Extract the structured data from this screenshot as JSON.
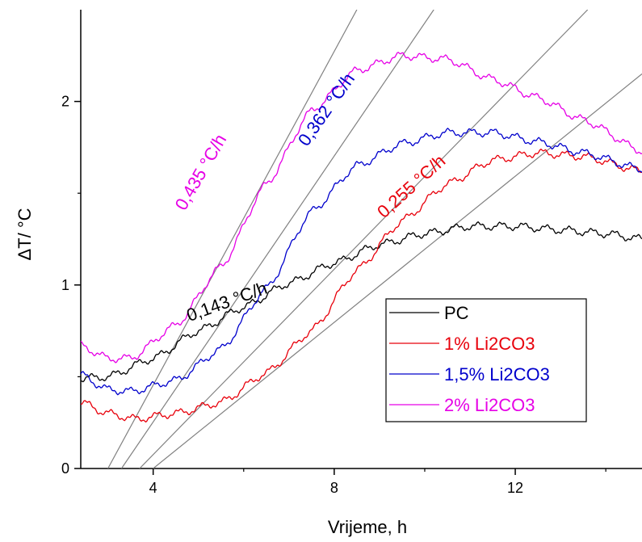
{
  "chart_data": {
    "type": "line",
    "title": "",
    "xlabel": "Vrijeme, h",
    "ylabel": "ΔT/ °C",
    "xlim": [
      2.4,
      14.8
    ],
    "ylim": [
      0,
      2.5
    ],
    "xticks": [
      4,
      8,
      12
    ],
    "yticks": [
      0,
      1,
      2
    ],
    "xtick_labels": [
      "4",
      "8",
      "12"
    ],
    "ytick_labels": [
      "0",
      "1",
      "2"
    ],
    "grid": false,
    "legend_position": "bottom-right",
    "series": [
      {
        "name": "PC",
        "color": "#000000",
        "points": [
          [
            2.4,
            0.49
          ],
          [
            3.0,
            0.5
          ],
          [
            4.0,
            0.6
          ],
          [
            5.0,
            0.75
          ],
          [
            6.0,
            0.88
          ],
          [
            7.0,
            1.01
          ],
          [
            8.0,
            1.12
          ],
          [
            9.0,
            1.22
          ],
          [
            10.0,
            1.28
          ],
          [
            11.0,
            1.32
          ],
          [
            12.0,
            1.32
          ],
          [
            13.0,
            1.3
          ],
          [
            14.0,
            1.28
          ],
          [
            14.8,
            1.25
          ]
        ]
      },
      {
        "name": "1% Li2CO3",
        "color": "#e8000b",
        "points": [
          [
            2.4,
            0.36
          ],
          [
            3.0,
            0.3
          ],
          [
            3.6,
            0.27
          ],
          [
            4.5,
            0.3
          ],
          [
            5.5,
            0.36
          ],
          [
            6.5,
            0.52
          ],
          [
            7.5,
            0.75
          ],
          [
            8.5,
            1.08
          ],
          [
            9.5,
            1.35
          ],
          [
            10.5,
            1.55
          ],
          [
            11.5,
            1.68
          ],
          [
            12.5,
            1.72
          ],
          [
            13.5,
            1.7
          ],
          [
            14.8,
            1.62
          ]
        ]
      },
      {
        "name": "1,5% Li2CO3",
        "color": "#0000cc",
        "points": [
          [
            2.4,
            0.51
          ],
          [
            3.0,
            0.43
          ],
          [
            3.5,
            0.42
          ],
          [
            4.5,
            0.48
          ],
          [
            5.5,
            0.65
          ],
          [
            6.5,
            0.98
          ],
          [
            7.5,
            1.4
          ],
          [
            8.5,
            1.65
          ],
          [
            9.5,
            1.77
          ],
          [
            10.5,
            1.83
          ],
          [
            11.5,
            1.83
          ],
          [
            12.5,
            1.78
          ],
          [
            13.5,
            1.72
          ],
          [
            14.8,
            1.63
          ]
        ]
      },
      {
        "name": "2% Li2CO3",
        "color": "#e600e6",
        "points": [
          [
            2.4,
            0.67
          ],
          [
            3.0,
            0.6
          ],
          [
            3.5,
            0.6
          ],
          [
            4.5,
            0.78
          ],
          [
            5.5,
            1.1
          ],
          [
            6.5,
            1.55
          ],
          [
            7.5,
            1.95
          ],
          [
            8.5,
            2.17
          ],
          [
            9.5,
            2.25
          ],
          [
            10.5,
            2.23
          ],
          [
            11.5,
            2.12
          ],
          [
            12.5,
            2.02
          ],
          [
            13.5,
            1.9
          ],
          [
            14.8,
            1.73
          ]
        ]
      }
    ],
    "tangent_lines": [
      {
        "color": "#808080",
        "from": [
          4.0,
          0.0
        ],
        "to": [
          14.8,
          2.15
        ]
      },
      {
        "color": "#808080",
        "from": [
          3.7,
          0.0
        ],
        "to": [
          13.6,
          2.5
        ]
      },
      {
        "color": "#808080",
        "from": [
          3.3,
          0.0
        ],
        "to": [
          10.2,
          2.5
        ]
      },
      {
        "color": "#808080",
        "from": [
          3.0,
          0.0
        ],
        "to": [
          8.5,
          2.5
        ]
      }
    ],
    "annotations": [
      {
        "text": "0,435 °C/h",
        "color": "#e600e6",
        "x": 4.7,
        "y": 1.4,
        "angle": -60
      },
      {
        "text": "0,362 °C/h",
        "color": "#0000cc",
        "x": 7.4,
        "y": 1.75,
        "angle": -55
      },
      {
        "text": "0,255 °C/h",
        "color": "#e8000b",
        "x": 9.1,
        "y": 1.36,
        "angle": -42
      },
      {
        "text": "0,143 °C/h",
        "color": "#000000",
        "x": 4.8,
        "y": 0.8,
        "angle": -20
      }
    ]
  }
}
